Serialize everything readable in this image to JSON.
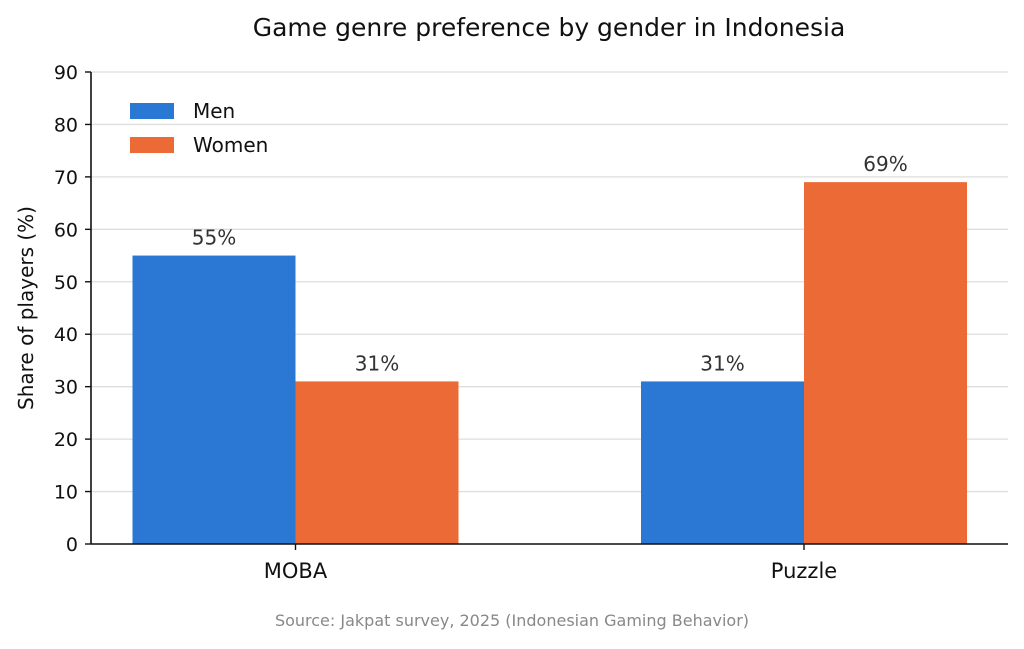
{
  "chart_data": {
    "type": "bar",
    "title": "Game genre preference by gender in Indonesia",
    "xlabel": "",
    "ylabel": "Share of players (%)",
    "categories": [
      "MOBA",
      "Puzzle"
    ],
    "series": [
      {
        "name": "Men",
        "values": [
          55,
          31
        ],
        "color": "#2a78d4",
        "labels": [
          "55%",
          "31%"
        ]
      },
      {
        "name": "Women",
        "values": [
          31,
          69
        ],
        "color": "#eb6a35",
        "labels": [
          "31%",
          "69%"
        ]
      }
    ],
    "ylim": [
      0,
      90
    ],
    "yticks": [
      "0",
      "10",
      "20",
      "30",
      "40",
      "50",
      "60",
      "70",
      "80",
      "90"
    ],
    "grid": true,
    "legend_position": "top-left",
    "source": "Source: Jakpat survey, 2025 (Indonesian Gaming Behavior)"
  }
}
